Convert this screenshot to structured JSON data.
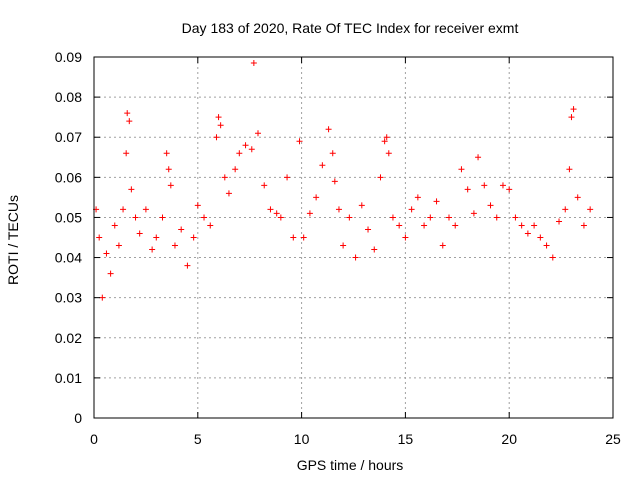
{
  "chart_data": {
    "type": "scatter",
    "title": "Day 183 of 2020, Rate Of TEC Index for receiver exmt",
    "xlabel": "GPS time / hours",
    "ylabel": "ROTI / TECUs",
    "xlim": [
      0,
      25
    ],
    "ylim": [
      0,
      0.09
    ],
    "x_ticks": [
      "0",
      "5",
      "10",
      "15",
      "20",
      "25"
    ],
    "y_ticks": [
      "0",
      "0.01",
      "0.02",
      "0.03",
      "0.04",
      "0.05",
      "0.06",
      "0.07",
      "0.08",
      "0.09"
    ],
    "grid": true,
    "marker": "+",
    "point_color": "#ff0000",
    "series": [
      {
        "x": [
          0.1,
          0.25,
          0.4,
          0.6,
          0.8,
          1.0,
          1.2,
          1.4,
          1.55,
          1.6,
          1.7,
          1.8,
          2.0,
          2.2,
          2.5,
          2.8,
          3.0,
          3.3,
          3.5,
          3.6,
          3.7,
          3.9,
          4.2,
          4.5,
          4.8,
          5.0,
          5.3,
          5.6,
          5.9,
          6.0,
          6.1,
          6.3,
          6.5,
          6.8,
          7.0,
          7.3,
          7.6,
          7.7,
          7.9,
          8.2,
          8.5,
          8.8,
          9.0,
          9.3,
          9.6,
          9.9,
          10.1,
          10.4,
          10.7,
          11.0,
          11.3,
          11.5,
          11.6,
          11.8,
          12.0,
          12.3,
          12.6,
          12.9,
          13.2,
          13.5,
          13.8,
          14.0,
          14.1,
          14.2,
          14.4,
          14.7,
          15.0,
          15.3,
          15.6,
          15.9,
          16.2,
          16.5,
          16.8,
          17.1,
          17.4,
          17.7,
          18.0,
          18.3,
          18.5,
          18.8,
          19.1,
          19.4,
          19.7,
          20.0,
          20.3,
          20.6,
          20.9,
          21.2,
          21.5,
          21.8,
          22.1,
          22.4,
          22.7,
          22.9,
          23.0,
          23.1,
          23.3,
          23.6,
          23.9
        ],
        "y": [
          0.052,
          0.045,
          0.03,
          0.041,
          0.036,
          0.048,
          0.043,
          0.052,
          0.066,
          0.076,
          0.074,
          0.057,
          0.05,
          0.046,
          0.052,
          0.042,
          0.045,
          0.05,
          0.066,
          0.062,
          0.058,
          0.043,
          0.047,
          0.038,
          0.045,
          0.053,
          0.05,
          0.048,
          0.07,
          0.075,
          0.073,
          0.06,
          0.056,
          0.062,
          0.066,
          0.068,
          0.067,
          0.0885,
          0.071,
          0.058,
          0.052,
          0.051,
          0.05,
          0.06,
          0.045,
          0.069,
          0.045,
          0.051,
          0.055,
          0.063,
          0.072,
          0.066,
          0.059,
          0.052,
          0.043,
          0.05,
          0.04,
          0.053,
          0.047,
          0.042,
          0.06,
          0.069,
          0.07,
          0.066,
          0.05,
          0.048,
          0.045,
          0.052,
          0.055,
          0.048,
          0.05,
          0.054,
          0.043,
          0.05,
          0.048,
          0.062,
          0.057,
          0.051,
          0.065,
          0.058,
          0.053,
          0.05,
          0.058,
          0.057,
          0.05,
          0.048,
          0.046,
          0.048,
          0.045,
          0.043,
          0.04,
          0.049,
          0.052,
          0.062,
          0.075,
          0.077,
          0.055,
          0.048,
          0.052
        ]
      }
    ]
  }
}
